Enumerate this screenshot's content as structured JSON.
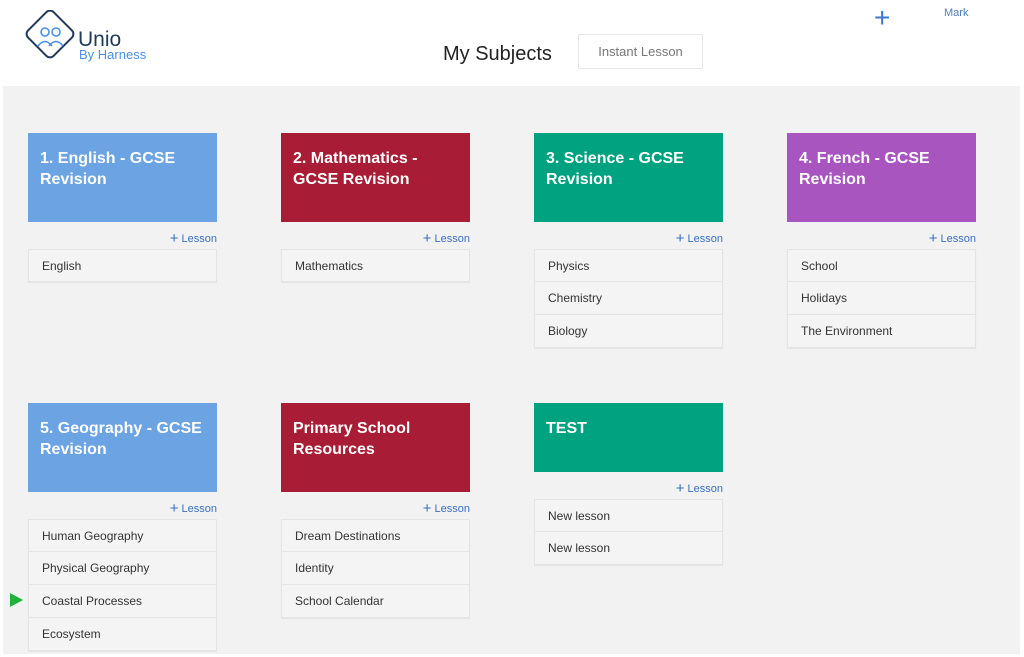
{
  "header": {
    "logo_title": "Unio",
    "logo_subtitle": "By Harness",
    "page_title": "My Subjects",
    "instant_lesson": "Instant Lesson",
    "add_icon": "plus-icon",
    "user_name": "Mark"
  },
  "add_lesson_label": "Lesson",
  "colors": {
    "blue": "#6ba3e3",
    "red": "#a91c35",
    "green": "#00a27f",
    "purple": "#a855c0"
  },
  "subjects": [
    {
      "title": "1. English - GCSE Revision",
      "color": "#6ba3e3",
      "lessons": [
        "English"
      ]
    },
    {
      "title": "2. Mathematics - GCSE Revision",
      "color": "#a91c35",
      "lessons": [
        "Mathematics"
      ]
    },
    {
      "title": "3. Science - GCSE Revision",
      "color": "#00a27f",
      "lessons": [
        "Physics",
        "Chemistry",
        "Biology"
      ]
    },
    {
      "title": "4. French - GCSE Revision",
      "color": "#a855c0",
      "lessons": [
        "School",
        "Holidays",
        "The Environment"
      ]
    },
    {
      "title": "5. Geography - GCSE Revision",
      "color": "#6ba3e3",
      "lessons": [
        "Human Geography",
        "Physical Geography",
        "Coastal Processes",
        "Ecosystem"
      ]
    },
    {
      "title": "Primary School Resources",
      "color": "#a91c35",
      "lessons": [
        "Dream Destinations",
        "Identity",
        "School Calendar"
      ]
    },
    {
      "title": "TEST",
      "color": "#00a27f",
      "lessons": [
        "New lesson",
        "New lesson"
      ]
    }
  ]
}
